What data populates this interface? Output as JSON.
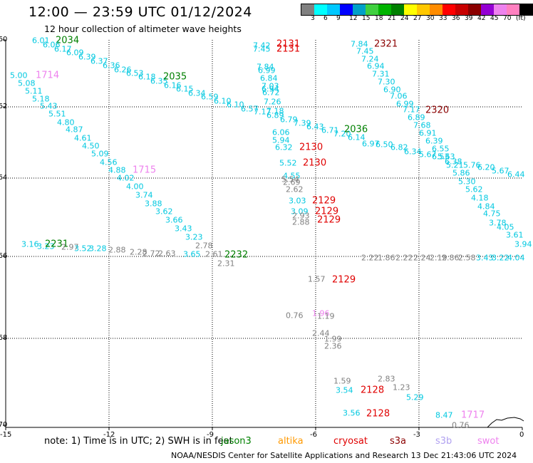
{
  "header": {
    "title": "12:00 — 23:59 UTC 01/12/2024",
    "subtitle": "12 hour collection of altimeter wave heights"
  },
  "colorbar": {
    "colors": [
      "#808080",
      "#00ffff",
      "#00c8ff",
      "#0000ff",
      "#00a0c8",
      "#40d040",
      "#00b400",
      "#008000",
      "#ffff00",
      "#ffc800",
      "#ff8c00",
      "#ff0000",
      "#c80000",
      "#8b0000",
      "#9400d3",
      "#ee82ee",
      "#ff80c0",
      "#000000"
    ],
    "labels": [
      "3",
      "6",
      "9",
      "12",
      "15",
      "18",
      "21",
      "24",
      "27",
      "30",
      "33",
      "36",
      "39",
      "42",
      "45",
      "70",
      "(ft)"
    ]
  },
  "axes": {
    "lat_ticks": [
      "-60",
      "-62",
      "-64",
      "-66",
      "-68",
      "-70"
    ],
    "lon_ticks": [
      "-15",
      "-12",
      "-9",
      "-6",
      "-3",
      "0"
    ]
  },
  "colors": {
    "jason3": "#008000",
    "altika": "#00c8e0",
    "cryosat": "#e00000",
    "s3a": "#8b0000",
    "s3b": "#b0a0f0",
    "swot": "#ee82ee",
    "gray": "#808080"
  },
  "labels": [
    {
      "t": "6.01",
      "c": "altika"
    },
    {
      "t": "2034",
      "c": "jason3",
      "p": 1
    },
    {
      "t": "6.06",
      "c": "altika"
    },
    {
      "t": "6.17",
      "c": "altika"
    },
    {
      "t": "6.09",
      "c": "altika"
    },
    {
      "t": "6.39",
      "c": "altika"
    },
    {
      "t": "6.37",
      "c": "altika"
    },
    {
      "t": "6.36",
      "c": "altika"
    },
    {
      "t": "6.26",
      "c": "altika"
    },
    {
      "t": "6.53",
      "c": "altika"
    },
    {
      "t": "6.18",
      "c": "altika"
    },
    {
      "t": "6.35",
      "c": "altika"
    },
    {
      "t": "2035",
      "c": "jason3",
      "p": 1
    },
    {
      "t": "6.16",
      "c": "altika"
    },
    {
      "t": "6.15",
      "c": "altika"
    },
    {
      "t": "6.34",
      "c": "altika"
    },
    {
      "t": "6.59",
      "c": "altika"
    },
    {
      "t": "6.10",
      "c": "altika"
    },
    {
      "t": "6.10",
      "c": "altika"
    },
    {
      "t": "6.57",
      "c": "altika"
    },
    {
      "t": "7.17",
      "c": "altika"
    },
    {
      "t": "7.18",
      "c": "altika"
    },
    {
      "t": "6.89",
      "c": "altika"
    },
    {
      "t": "6.79",
      "c": "altika"
    },
    {
      "t": "7.39",
      "c": "altika"
    },
    {
      "t": "6.43",
      "c": "altika"
    },
    {
      "t": "6.71",
      "c": "altika"
    },
    {
      "t": "7.20",
      "c": "altika"
    },
    {
      "t": "2036",
      "c": "jason3",
      "p": 1
    },
    {
      "t": "6.14",
      "c": "altika"
    },
    {
      "t": "6.97",
      "c": "altika"
    },
    {
      "t": "6.50",
      "c": "altika"
    },
    {
      "t": "6.82",
      "c": "altika"
    },
    {
      "t": "6.34",
      "c": "altika"
    },
    {
      "t": "5.67",
      "c": "altika"
    },
    {
      "t": "6.53",
      "c": "altika"
    },
    {
      "t": "6.38",
      "c": "altika"
    },
    {
      "t": "5.76",
      "c": "altika"
    },
    {
      "t": "6.20",
      "c": "altika"
    },
    {
      "t": "5.67",
      "c": "altika"
    },
    {
      "t": "6.44",
      "c": "altika"
    },
    {
      "t": "7.42",
      "c": "altika"
    },
    {
      "t": "7.45",
      "c": "altika"
    },
    {
      "t": "2131",
      "c": "cryosat",
      "p": 1
    },
    {
      "t": "2131",
      "c": "cryosat",
      "p": 1
    },
    {
      "t": "7.84",
      "c": "altika"
    },
    {
      "t": "6.99",
      "c": "altika"
    },
    {
      "t": "6.84",
      "c": "altika"
    },
    {
      "t": "7.03",
      "c": "altika"
    },
    {
      "t": "6.94",
      "c": "altika"
    },
    {
      "t": "6.72",
      "c": "altika"
    },
    {
      "t": "7.26",
      "c": "altika"
    },
    {
      "t": "6.06",
      "c": "altika"
    },
    {
      "t": "5.94",
      "c": "altika"
    },
    {
      "t": "6.32",
      "c": "altika"
    },
    {
      "t": "2130",
      "c": "cryosat",
      "p": 1
    },
    {
      "t": "5.52",
      "c": "altika"
    },
    {
      "t": "2130",
      "c": "cryosat",
      "p": 1
    },
    {
      "t": "4.55",
      "c": "altika"
    },
    {
      "t": "5.54",
      "c": "gray"
    },
    {
      "t": "2.69",
      "c": "gray"
    },
    {
      "t": "2.62",
      "c": "gray"
    },
    {
      "t": "3.03",
      "c": "altika"
    },
    {
      "t": "2129",
      "c": "cryosat",
      "p": 1
    },
    {
      "t": "3.09",
      "c": "altika"
    },
    {
      "t": "2129",
      "c": "cryosat",
      "p": 1
    },
    {
      "t": "2.93",
      "c": "gray"
    },
    {
      "t": "2.88",
      "c": "gray"
    },
    {
      "t": "2129",
      "c": "cryosat",
      "p": 1
    },
    {
      "t": "7.84",
      "c": "altika"
    },
    {
      "t": "2321",
      "c": "s3a",
      "p": 1
    },
    {
      "t": "7.45",
      "c": "altika"
    },
    {
      "t": "7.24",
      "c": "altika"
    },
    {
      "t": "6.94",
      "c": "altika"
    },
    {
      "t": "7.31",
      "c": "altika"
    },
    {
      "t": "7.30",
      "c": "altika"
    },
    {
      "t": "6.90",
      "c": "altika"
    },
    {
      "t": "7.06",
      "c": "altika"
    },
    {
      "t": "6.99",
      "c": "altika"
    },
    {
      "t": "7.17",
      "c": "altika"
    },
    {
      "t": "2320",
      "c": "s3a",
      "p": 1
    },
    {
      "t": "6.89",
      "c": "altika"
    },
    {
      "t": "7.68",
      "c": "altika"
    },
    {
      "t": "6.91",
      "c": "altika"
    },
    {
      "t": "6.39",
      "c": "altika"
    },
    {
      "t": "6.55",
      "c": "altika"
    },
    {
      "t": "5.63",
      "c": "altika"
    },
    {
      "t": "5.21",
      "c": "altika"
    },
    {
      "t": "5.86",
      "c": "altika"
    },
    {
      "t": "5.30",
      "c": "altika"
    },
    {
      "t": "5.62",
      "c": "altika"
    },
    {
      "t": "4.18",
      "c": "altika"
    },
    {
      "t": "4.84",
      "c": "altika"
    },
    {
      "t": "4.75",
      "c": "altika"
    },
    {
      "t": "3.78",
      "c": "altika"
    },
    {
      "t": "4.05",
      "c": "altika"
    },
    {
      "t": "3.61",
      "c": "altika"
    },
    {
      "t": "3.94",
      "c": "altika"
    },
    {
      "t": "5.00",
      "c": "altika"
    },
    {
      "t": "1714",
      "c": "swot",
      "p": 1
    },
    {
      "t": "5.08",
      "c": "altika"
    },
    {
      "t": "5.11",
      "c": "altika"
    },
    {
      "t": "5.18",
      "c": "altika"
    },
    {
      "t": "5.43",
      "c": "altika"
    },
    {
      "t": "5.51",
      "c": "altika"
    },
    {
      "t": "4.80",
      "c": "altika"
    },
    {
      "t": "4.87",
      "c": "altika"
    },
    {
      "t": "4.61",
      "c": "altika"
    },
    {
      "t": "4.50",
      "c": "altika"
    },
    {
      "t": "5.09",
      "c": "altika"
    },
    {
      "t": "4.56",
      "c": "altika"
    },
    {
      "t": "4.88",
      "c": "altika"
    },
    {
      "t": "1715",
      "c": "swot",
      "p": 1
    },
    {
      "t": "4.02",
      "c": "altika"
    },
    {
      "t": "4.00",
      "c": "altika"
    },
    {
      "t": "3.74",
      "c": "altika"
    },
    {
      "t": "3.88",
      "c": "altika"
    },
    {
      "t": "3.62",
      "c": "altika"
    },
    {
      "t": "3.66",
      "c": "altika"
    },
    {
      "t": "3.43",
      "c": "altika"
    },
    {
      "t": "3.23",
      "c": "altika"
    },
    {
      "t": "2.78",
      "c": "gray"
    },
    {
      "t": "2.61",
      "c": "gray"
    },
    {
      "t": "2.31",
      "c": "gray"
    },
    {
      "t": "2232",
      "c": "jason3",
      "p": 1
    },
    {
      "t": "3.65",
      "c": "altika"
    },
    {
      "t": "3.16",
      "c": "altika"
    },
    {
      "t": "3.23",
      "c": "altika"
    },
    {
      "t": "2231",
      "c": "jason3",
      "p": 1
    },
    {
      "t": "2.97",
      "c": "gray"
    },
    {
      "t": "3.52",
      "c": "altika"
    },
    {
      "t": "3.28",
      "c": "altika"
    },
    {
      "t": "2.88",
      "c": "gray"
    },
    {
      "t": "2.28",
      "c": "gray"
    },
    {
      "t": "2.72",
      "c": "gray"
    },
    {
      "t": "2.63",
      "c": "gray"
    },
    {
      "t": "2.22",
      "c": "gray"
    },
    {
      "t": "1.86",
      "c": "gray"
    },
    {
      "t": "2.22",
      "c": "gray"
    },
    {
      "t": "2.24",
      "c": "gray"
    },
    {
      "t": "2.19",
      "c": "gray"
    },
    {
      "t": "2.86",
      "c": "gray"
    },
    {
      "t": "2.58",
      "c": "gray"
    },
    {
      "t": "3.43",
      "c": "altika"
    },
    {
      "t": "3.22",
      "c": "altika"
    },
    {
      "t": "4.04",
      "c": "altika"
    },
    {
      "t": "1.57",
      "c": "gray"
    },
    {
      "t": "2129",
      "c": "cryosat",
      "p": 1
    },
    {
      "t": "0.76",
      "c": "gray"
    },
    {
      "t": "1.96",
      "c": "swot"
    },
    {
      "t": "1.19",
      "c": "gray"
    },
    {
      "t": "2.44",
      "c": "gray"
    },
    {
      "t": "1.99",
      "c": "gray"
    },
    {
      "t": "2.36",
      "c": "gray"
    },
    {
      "t": "1.59",
      "c": "gray"
    },
    {
      "t": "2.83",
      "c": "gray"
    },
    {
      "t": "3.54",
      "c": "altika"
    },
    {
      "t": "2128",
      "c": "cryosat",
      "p": 1
    },
    {
      "t": "1.23",
      "c": "gray"
    },
    {
      "t": "5.29",
      "c": "altika"
    },
    {
      "t": "3.56",
      "c": "altika"
    },
    {
      "t": "2128",
      "c": "cryosat",
      "p": 1
    },
    {
      "t": "8.47",
      "c": "altika"
    },
    {
      "t": "1717",
      "c": "swot",
      "p": 1
    },
    {
      "t": "0.76",
      "c": "gray"
    }
  ],
  "note": "note:  1) Time is in UTC; 2) SWH is in feet",
  "legend": [
    {
      "name": "jason3",
      "c": "jason3"
    },
    {
      "name": "altika",
      "c": "altika_orange"
    },
    {
      "name": "cryosat",
      "c": "cryosat"
    },
    {
      "name": "s3a",
      "c": "s3a"
    },
    {
      "name": "s3b",
      "c": "s3b"
    },
    {
      "name": "swot",
      "c": "swot"
    }
  ],
  "legend_colors": {
    "altika_orange": "#ff9900"
  },
  "footer": "NOAA/NESDIS Center for Satellite Applications and Research    13 Dec 21:43:06 UTC 2024"
}
